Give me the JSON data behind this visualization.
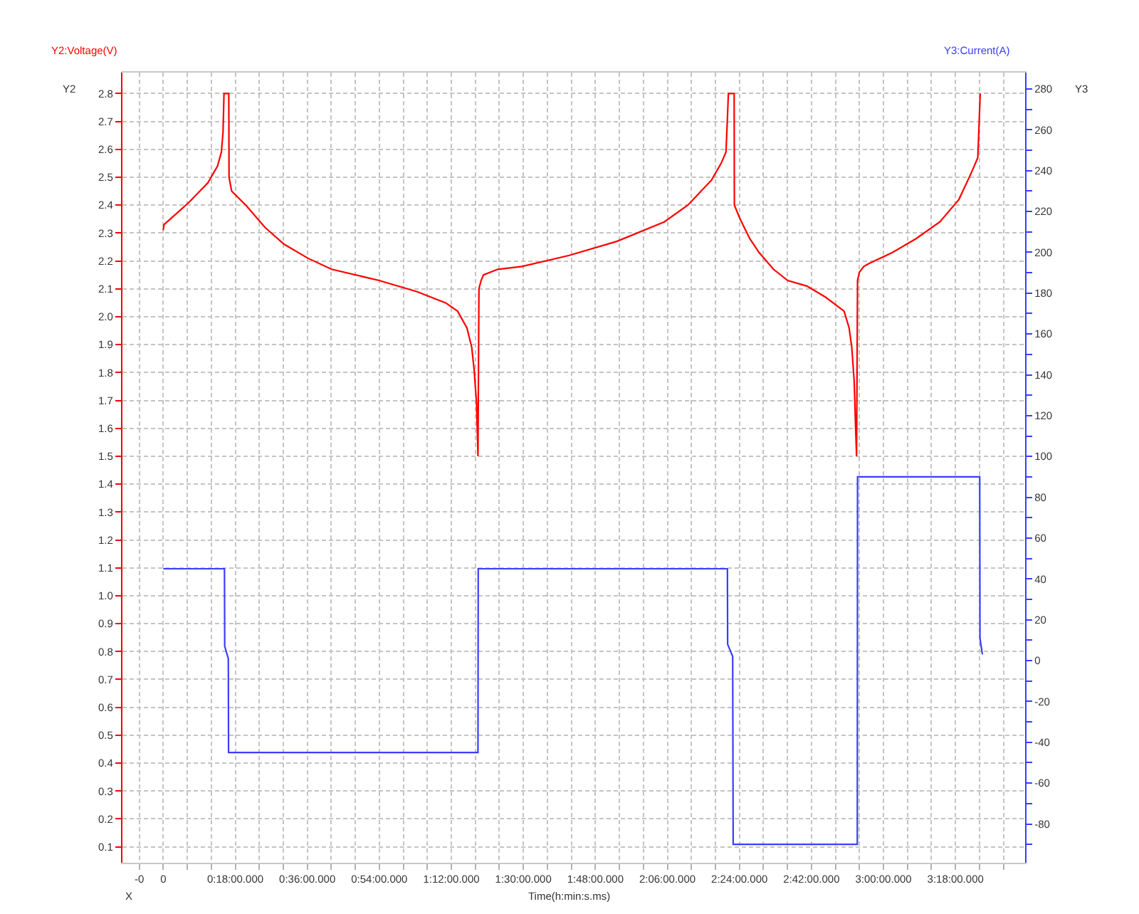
{
  "chart_data": {
    "type": "line",
    "xlabel": "Time(h:min:s.ms)",
    "ylabel": "Y2:Voltage(V)",
    "y2label": "Y3:Current(A)",
    "annotations": [
      "Y2",
      "Y3",
      "X"
    ],
    "xlim": [
      -0.17,
      3.59
    ],
    "xticks": [
      {
        "value": -0.1,
        "label": "-0"
      },
      0,
      {
        "value": 0.1,
        "label": null
      },
      {
        "value": 0.2,
        "label": null
      },
      {
        "value": 0.3,
        "label": "0:18:00.000"
      },
      {
        "value": 0.4,
        "label": null
      },
      {
        "value": 0.5,
        "label": null
      },
      {
        "value": 0.6,
        "label": "0:36:00.000"
      },
      {
        "value": 0.7,
        "label": null
      },
      {
        "value": 0.8,
        "label": null
      },
      {
        "value": 0.9,
        "label": "0:54:00.000"
      },
      {
        "value": 1.0,
        "label": null
      },
      {
        "value": 1.1,
        "label": null
      },
      {
        "value": 1.2,
        "label": "1:12:00.000"
      },
      {
        "value": 1.3,
        "label": null
      },
      {
        "value": 1.4,
        "label": null
      },
      {
        "value": 1.5,
        "label": "1:30:00.000"
      },
      {
        "value": 1.6,
        "label": null
      },
      {
        "value": 1.7,
        "label": null
      },
      {
        "value": 1.8,
        "label": "1:48:00.000"
      },
      {
        "value": 1.9,
        "label": null
      },
      {
        "value": 2.0,
        "label": null
      },
      {
        "value": 2.1,
        "label": "2:06:00.000"
      },
      {
        "value": 2.2,
        "label": null
      },
      {
        "value": 2.3,
        "label": null
      },
      {
        "value": 2.4,
        "label": "2:24:00.000"
      },
      {
        "value": 2.5,
        "label": null
      },
      {
        "value": 2.6,
        "label": null
      },
      {
        "value": 2.7,
        "label": "2:42:00.000"
      },
      {
        "value": 2.8,
        "label": null
      },
      {
        "value": 2.9,
        "label": null
      },
      {
        "value": 3.0,
        "label": "3:00:00.000"
      },
      {
        "value": 3.1,
        "label": null
      },
      {
        "value": 3.2,
        "label": null
      },
      {
        "value": 3.3,
        "label": "3:18:00.000"
      },
      {
        "value": 3.4,
        "label": null
      },
      {
        "value": 3.5,
        "label": null
      }
    ],
    "ylim": [
      0.043,
      2.875
    ],
    "yticks": [
      0.1,
      0.2,
      0.3,
      0.4,
      0.5,
      0.6,
      0.7,
      0.8,
      0.9,
      {
        "value": 1.0,
        "label": "1.0"
      },
      1.1,
      1.2,
      1.3,
      1.4,
      1.5,
      1.6,
      1.7,
      1.8,
      1.9,
      {
        "value": 2.0,
        "label": "2.0"
      },
      2.1,
      2.2,
      2.3,
      2.4,
      2.5,
      2.6,
      2.7,
      2.8
    ],
    "y2lim": [
      -99,
      288
    ],
    "y2ticks": [
      {
        "value": -90,
        "label": null
      },
      -80,
      {
        "value": -70,
        "label": null
      },
      -60,
      {
        "value": -50,
        "label": null
      },
      -40,
      {
        "value": -30,
        "label": null
      },
      -20,
      {
        "value": -10,
        "label": null
      },
      0,
      {
        "value": 10,
        "label": null
      },
      20,
      {
        "value": 30,
        "label": null
      },
      40,
      {
        "value": 50,
        "label": null
      },
      60,
      {
        "value": 70,
        "label": null
      },
      80,
      {
        "value": 90,
        "label": null
      },
      100,
      {
        "value": 110,
        "label": null
      },
      120,
      {
        "value": 130,
        "label": null
      },
      140,
      {
        "value": 150,
        "label": null
      },
      160,
      {
        "value": 170,
        "label": null
      },
      180,
      {
        "value": 190,
        "label": null
      },
      200,
      {
        "value": 210,
        "label": null
      },
      220,
      {
        "value": 230,
        "label": null
      },
      240,
      {
        "value": 250,
        "label": null
      },
      260,
      {
        "value": 270,
        "label": null
      },
      280
    ],
    "grid": true,
    "series": [
      {
        "color": "#ff0000",
        "x": [
          0.0,
          0.003,
          0.107,
          0.186,
          0.226,
          0.242,
          0.249,
          0.253,
          0.273,
          0.274,
          0.285,
          0.344,
          0.424,
          0.503,
          0.602,
          0.701,
          0.899,
          1.057,
          1.176,
          1.226,
          1.265,
          1.285,
          1.295,
          1.305,
          1.311,
          1.315,
          1.324,
          1.334,
          1.394,
          1.493,
          1.691,
          1.889,
          2.087,
          2.185,
          2.284,
          2.324,
          2.344,
          2.35,
          2.354,
          2.378,
          2.379,
          2.403,
          2.443,
          2.482,
          2.542,
          2.601,
          2.681,
          2.759,
          2.836,
          2.857,
          2.868,
          2.878,
          2.884,
          2.888,
          2.892,
          2.9,
          2.918,
          2.938,
          3.037,
          3.136,
          3.235,
          3.314,
          3.363,
          3.393,
          3.397,
          3.403
        ],
        "values": [
          2.31,
          2.33,
          2.41,
          2.48,
          2.54,
          2.59,
          2.66,
          2.8,
          2.8,
          2.5,
          2.45,
          2.4,
          2.32,
          2.26,
          2.21,
          2.17,
          2.13,
          2.09,
          2.05,
          2.02,
          1.96,
          1.89,
          1.81,
          1.69,
          1.5,
          2.1,
          2.13,
          2.15,
          2.17,
          2.18,
          2.22,
          2.27,
          2.34,
          2.4,
          2.49,
          2.55,
          2.59,
          2.71,
          2.8,
          2.8,
          2.4,
          2.35,
          2.28,
          2.23,
          2.17,
          2.13,
          2.11,
          2.07,
          2.02,
          1.96,
          1.89,
          1.77,
          1.6,
          1.5,
          2.13,
          2.16,
          2.18,
          2.19,
          2.23,
          2.28,
          2.34,
          2.42,
          2.51,
          2.57,
          2.66,
          2.8
        ]
      },
      {
        "color": "#3c3cff",
        "axis": "y2",
        "x": [
          0.0,
          0.255,
          0.256,
          0.271,
          0.272,
          1.311,
          1.312,
          2.35,
          2.351,
          2.372,
          2.374,
          2.891,
          2.892,
          3.401,
          3.402,
          3.412
        ],
        "values": [
          45,
          45,
          7,
          1,
          -45,
          -45,
          45,
          45,
          8,
          2,
          -90,
          -90,
          90,
          90,
          11,
          3
        ]
      }
    ]
  }
}
